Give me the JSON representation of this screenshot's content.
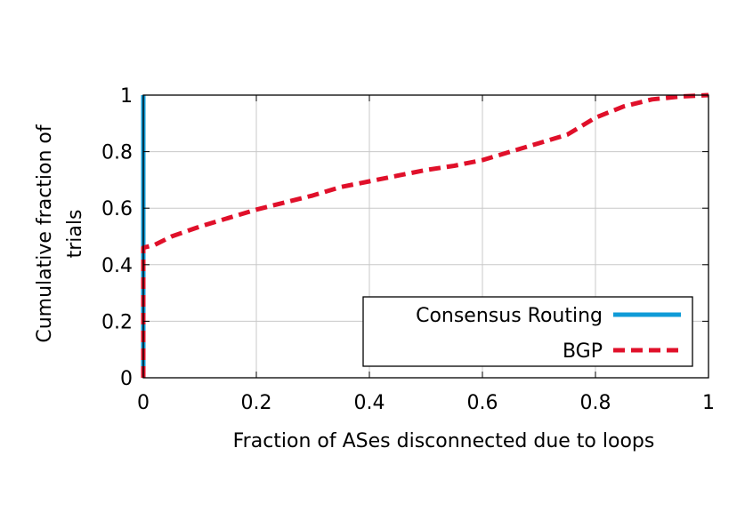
{
  "chart_data": {
    "type": "line",
    "xlabel": "Fraction of ASes disconnected due to loops",
    "ylabel": "Cumulative fraction of trials",
    "xlim": [
      0,
      1
    ],
    "ylim": [
      0,
      1
    ],
    "xticks": [
      "0",
      "0.2",
      "0.4",
      "0.6",
      "0.8",
      "1"
    ],
    "yticks": [
      "0",
      "0.2",
      "0.4",
      "0.6",
      "0.8",
      "1"
    ],
    "grid": true,
    "legend_position": "bottom-right",
    "series": [
      {
        "name": "Consensus Routing",
        "color": "#0f9bd7",
        "style": "solid",
        "points": [
          [
            0,
            0
          ],
          [
            0,
            1
          ]
        ]
      },
      {
        "name": "BGP",
        "color": "#e0102a",
        "style": "dashed",
        "points": [
          [
            0,
            0
          ],
          [
            0,
            0.46
          ],
          [
            0.02,
            0.47
          ],
          [
            0.05,
            0.5
          ],
          [
            0.1,
            0.535
          ],
          [
            0.15,
            0.565
          ],
          [
            0.2,
            0.595
          ],
          [
            0.25,
            0.62
          ],
          [
            0.3,
            0.645
          ],
          [
            0.35,
            0.675
          ],
          [
            0.4,
            0.695
          ],
          [
            0.45,
            0.715
          ],
          [
            0.5,
            0.735
          ],
          [
            0.55,
            0.75
          ],
          [
            0.6,
            0.77
          ],
          [
            0.65,
            0.8
          ],
          [
            0.7,
            0.83
          ],
          [
            0.75,
            0.86
          ],
          [
            0.8,
            0.92
          ],
          [
            0.85,
            0.96
          ],
          [
            0.9,
            0.985
          ],
          [
            0.95,
            0.995
          ],
          [
            1.0,
            1.0
          ]
        ]
      }
    ]
  }
}
